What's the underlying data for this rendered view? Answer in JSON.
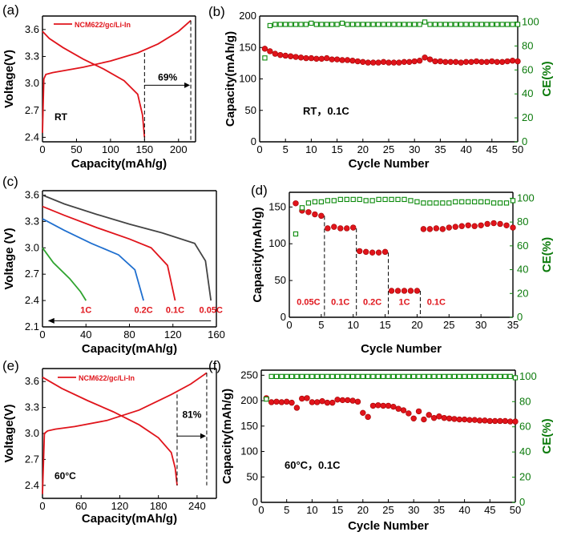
{
  "colors": {
    "red": "#e0141b",
    "green": "#0b8a0b",
    "black": "#000000",
    "gray": "#444444",
    "blue": "#1f6fcf"
  },
  "chart_data": [
    {
      "panel": "(a)",
      "type": "line",
      "xlabel": "Capacity(mAh/g)",
      "ylabel": "Voltage(V)",
      "xlim": [
        0,
        225
      ],
      "ylim": [
        2.35,
        3.75
      ],
      "xticks": [
        "0",
        "50",
        "100",
        "150",
        "200"
      ],
      "yticks": [
        "2.4",
        "2.7",
        "3.0",
        "3.3",
        "3.6"
      ],
      "legend": "NCM622/gc/Li-In",
      "annotations": {
        "condition": "RT",
        "ratio": "69%"
      },
      "series": [
        {
          "role": "charge",
          "x": [
            0,
            2,
            5,
            15,
            30,
            60,
            100,
            140,
            170,
            200,
            218
          ],
          "y": [
            2.45,
            3.05,
            3.1,
            3.12,
            3.14,
            3.18,
            3.25,
            3.34,
            3.44,
            3.58,
            3.7
          ]
        },
        {
          "role": "discharge",
          "x": [
            0,
            10,
            30,
            60,
            90,
            120,
            140,
            147,
            150
          ],
          "y": [
            3.58,
            3.5,
            3.4,
            3.27,
            3.16,
            3.03,
            2.88,
            2.65,
            2.4
          ]
        }
      ]
    },
    {
      "panel": "(b)",
      "type": "scatter",
      "xlabel": "Cycle Number",
      "ylabel": "Capacity(mAh/g)",
      "ylabel_right": "CE(%)",
      "xlim": [
        0,
        50
      ],
      "ylim": [
        0,
        200
      ],
      "ylim_right": [
        0,
        105
      ],
      "xticks": [
        "0",
        "5",
        "10",
        "15",
        "20",
        "25",
        "30",
        "35",
        "40",
        "45",
        "50"
      ],
      "yticks": [
        "0",
        "50",
        "100",
        "150",
        "200"
      ],
      "yticks_right": [
        "0",
        "20",
        "40",
        "60",
        "80",
        "100"
      ],
      "annotation": "RT，0.1C",
      "capacity": [
        148,
        144,
        140,
        138,
        137,
        136,
        135,
        134,
        133,
        133,
        132,
        132,
        133,
        131,
        131,
        130,
        130,
        129,
        128,
        127,
        126,
        126,
        126,
        127,
        126,
        126,
        126,
        127,
        127,
        128,
        129,
        134,
        131,
        128,
        128,
        127,
        127,
        127,
        126,
        127,
        127,
        128,
        127,
        127,
        128,
        127,
        127,
        128,
        129,
        128
      ],
      "ce": [
        70,
        97,
        98,
        98,
        98,
        98,
        98,
        98,
        98,
        99,
        98,
        98,
        98,
        98,
        98,
        99,
        98,
        98,
        98,
        98,
        98,
        98,
        98,
        98,
        98,
        98,
        98,
        98,
        98,
        98,
        98,
        100,
        98,
        98,
        98,
        98,
        98,
        98,
        98,
        98,
        98,
        98,
        98,
        98,
        98,
        98,
        98,
        98,
        98,
        98
      ]
    },
    {
      "panel": "(c)",
      "type": "line",
      "xlabel": "Capacity(mAh/g)",
      "ylabel": "Voltage (V)",
      "xlim": [
        0,
        160
      ],
      "ylim": [
        2.1,
        3.65
      ],
      "xticks": [
        "0",
        "40",
        "80",
        "120",
        "160"
      ],
      "yticks": [
        "2.1",
        "2.4",
        "2.7",
        "3.0",
        "3.3",
        "3.6"
      ],
      "series": [
        {
          "name": "0.05C",
          "x": [
            0,
            20,
            50,
            80,
            110,
            140,
            150,
            155
          ],
          "y": [
            3.6,
            3.5,
            3.38,
            3.27,
            3.17,
            3.05,
            2.85,
            2.4
          ]
        },
        {
          "name": "0.1C",
          "x": [
            0,
            20,
            50,
            80,
            100,
            115,
            122
          ],
          "y": [
            3.47,
            3.37,
            3.23,
            3.1,
            3.0,
            2.8,
            2.4
          ]
        },
        {
          "name": "0.2C",
          "x": [
            0,
            20,
            45,
            70,
            85,
            93
          ],
          "y": [
            3.33,
            3.2,
            3.05,
            2.92,
            2.75,
            2.4
          ]
        },
        {
          "name": "1C",
          "x": [
            0,
            10,
            25,
            35,
            40
          ],
          "y": [
            3.0,
            2.83,
            2.65,
            2.5,
            2.4
          ]
        }
      ]
    },
    {
      "panel": "(d)",
      "type": "scatter",
      "xlabel": "Cycle Number",
      "ylabel": "Capacity(mAh/g)",
      "ylabel_right": "CE(%)",
      "xlim": [
        0,
        35
      ],
      "ylim": [
        0,
        170
      ],
      "ylim_right": [
        0,
        105
      ],
      "xticks": [
        "0",
        "5",
        "10",
        "15",
        "20",
        "25",
        "30",
        "35"
      ],
      "yticks": [
        "0",
        "50",
        "100",
        "150"
      ],
      "yticks_right": [
        "0",
        "20",
        "40",
        "60",
        "80",
        "100"
      ],
      "rate_labels": [
        "0.05C",
        "0.1C",
        "0.2C",
        "1C",
        "0.1C"
      ],
      "capacity": [
        155,
        145,
        143,
        140,
        138,
        121,
        123,
        121,
        121,
        122,
        90,
        89,
        88,
        88,
        89,
        36,
        36,
        36,
        36,
        36,
        120,
        120,
        121,
        120,
        122,
        123,
        124,
        125,
        124,
        125,
        127,
        128,
        127,
        125,
        122
      ],
      "ce": [
        70,
        92,
        96,
        97,
        97,
        98,
        98,
        99,
        99,
        99,
        99,
        98,
        98,
        99,
        99,
        99,
        99,
        99,
        98,
        97,
        96,
        96,
        96,
        96,
        96,
        97,
        97,
        97,
        97,
        97,
        97,
        96,
        96,
        96,
        98
      ]
    },
    {
      "panel": "(e)",
      "type": "line",
      "xlabel": "Capacity(mAh/g)",
      "ylabel": "Voltage(V)",
      "xlim": [
        0,
        270
      ],
      "ylim": [
        2.25,
        3.75
      ],
      "xticks": [
        "0",
        "60",
        "120",
        "180",
        "240"
      ],
      "yticks": [
        "2.4",
        "2.7",
        "3.0",
        "3.3",
        "3.6"
      ],
      "legend": "NCM622/gc/Li-In",
      "annotations": {
        "condition": "60°C",
        "ratio": "81%"
      },
      "series": [
        {
          "role": "charge",
          "x": [
            0,
            3,
            8,
            20,
            50,
            100,
            150,
            200,
            230,
            255
          ],
          "y": [
            2.3,
            3.0,
            3.03,
            3.05,
            3.08,
            3.15,
            3.27,
            3.45,
            3.57,
            3.7
          ]
        },
        {
          "role": "discharge",
          "x": [
            0,
            30,
            70,
            110,
            150,
            180,
            200,
            206,
            209
          ],
          "y": [
            3.65,
            3.52,
            3.38,
            3.25,
            3.1,
            2.95,
            2.78,
            2.6,
            2.4
          ]
        }
      ]
    },
    {
      "panel": "(f)",
      "type": "scatter",
      "xlabel": "Cycle Number",
      "ylabel": "Capacity(mAh/g)",
      "ylabel_right": "CE(%)",
      "xlim": [
        0,
        50
      ],
      "ylim": [
        0,
        260
      ],
      "ylim_right": [
        0,
        105
      ],
      "xticks": [
        "0",
        "5",
        "10",
        "15",
        "20",
        "25",
        "30",
        "35",
        "40",
        "45",
        "50"
      ],
      "yticks": [
        "0",
        "50",
        "100",
        "150",
        "200",
        "250"
      ],
      "yticks_right": [
        "0",
        "20",
        "40",
        "60",
        "80",
        "100"
      ],
      "annotation": "60°C，0.1C",
      "capacity": [
        205,
        197,
        198,
        197,
        198,
        196,
        186,
        204,
        205,
        197,
        197,
        199,
        196,
        196,
        202,
        201,
        201,
        200,
        198,
        176,
        168,
        190,
        191,
        190,
        190,
        188,
        184,
        181,
        175,
        165,
        179,
        163,
        172,
        166,
        169,
        166,
        165,
        164,
        163,
        163,
        162,
        162,
        161,
        161,
        160,
        160,
        160,
        160,
        159,
        159
      ],
      "ce": [
        82,
        100,
        100,
        100,
        100,
        100,
        100,
        100,
        100,
        100,
        100,
        100,
        100,
        100,
        100,
        100,
        100,
        100,
        100,
        100,
        100,
        100,
        100,
        100,
        100,
        100,
        100,
        100,
        100,
        100,
        100,
        100,
        100,
        100,
        100,
        100,
        100,
        100,
        100,
        100,
        100,
        100,
        100,
        100,
        100,
        100,
        100,
        100,
        100,
        99
      ]
    }
  ]
}
